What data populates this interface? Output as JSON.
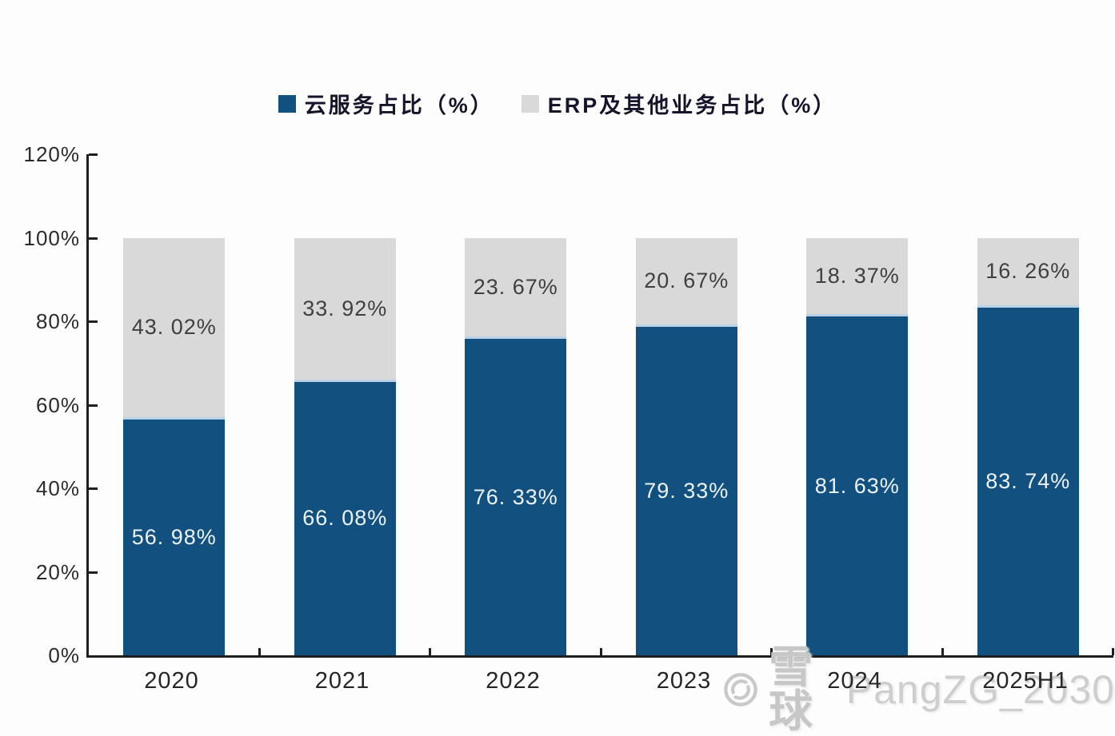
{
  "chart_data": {
    "type": "bar",
    "stacked": true,
    "title": "",
    "categories": [
      "2020",
      "2021",
      "2022",
      "2023",
      "2024",
      "2025H1"
    ],
    "series": [
      {
        "name": "云服务占比（%）",
        "color": "#12517f",
        "label_color": "#eef3f9",
        "values": [
          56.98,
          66.08,
          76.33,
          79.33,
          81.63,
          83.74
        ],
        "labels": [
          "56. 98%",
          "66. 08%",
          "76. 33%",
          "79. 33%",
          "81. 63%",
          "83. 74%"
        ]
      },
      {
        "name": "ERP及其他业务占比（%）",
        "color": "#d9d9d9",
        "label_color": "#3f3f3f",
        "values": [
          43.02,
          33.92,
          23.67,
          20.67,
          18.37,
          16.26
        ],
        "labels": [
          "43. 02%",
          "33. 92%",
          "23. 67%",
          "20. 67%",
          "18. 37%",
          "16. 26%"
        ]
      }
    ],
    "yticks": [
      "120%",
      "100%",
      "80%",
      "60%",
      "40%",
      "20%",
      "0%"
    ],
    "ylim": [
      0,
      120
    ],
    "legend_position": "top",
    "grid": false
  },
  "axis": {
    "line_color": "#1f1f1f",
    "label_color": "#262626"
  },
  "watermark": {
    "logo": "xueqiu-logo",
    "brand": "雪球",
    "handle": "PangZG_2030",
    "color": "#c9c9c9"
  }
}
